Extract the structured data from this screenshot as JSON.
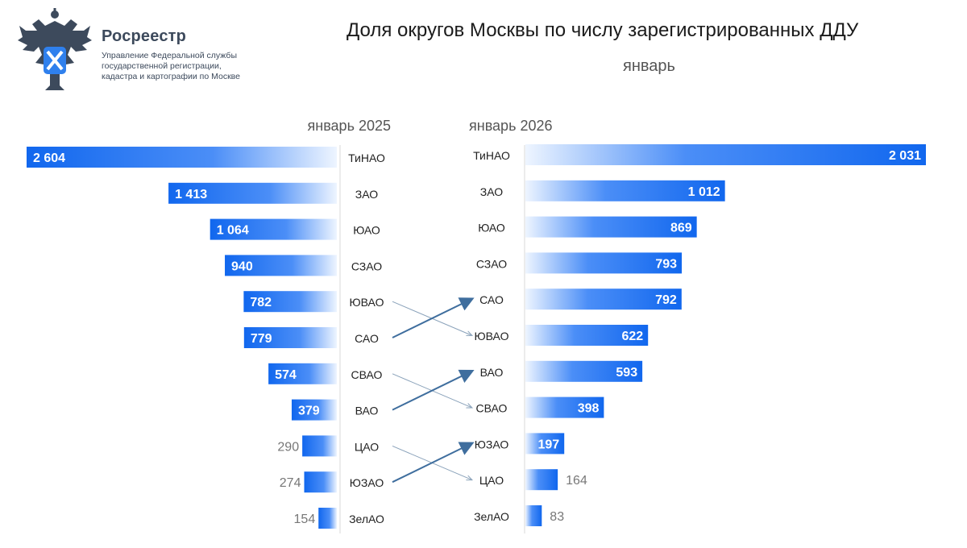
{
  "header": {
    "org_name": "Росреестр",
    "org_sub_lines": [
      "Управление Федеральной службы",
      "государственной регистрации,",
      "кадастра и картографии по Москве"
    ],
    "logo_icon": "double-headed-eagle-emblem-icon"
  },
  "colors": {
    "bar_dark": "#1167ee",
    "bar_light": "#eef5ff",
    "axis_line": "#d9d9d9",
    "arrow": "#3f6e9e"
  },
  "chart_data": {
    "type": "bar",
    "title": "Доля округов Москвы по числу зарегистрированных ДДУ",
    "subtitle": "январь",
    "left": {
      "name": "январь 2025",
      "categories": [
        "ТиНАО",
        "ЗАО",
        "ЮАО",
        "СЗАО",
        "ЮВАО",
        "САО",
        "СВАО",
        "ВАО",
        "ЦАО",
        "ЮЗАО",
        "ЗелАО"
      ],
      "values": [
        2604,
        1413,
        1064,
        940,
        782,
        779,
        574,
        379,
        290,
        274,
        154
      ],
      "labels": [
        "2 604",
        "1 413",
        "1 064",
        "940",
        "782",
        "779",
        "574",
        "379",
        "290",
        "274",
        "154"
      ]
    },
    "right": {
      "name": "январь 2026",
      "categories": [
        "ТиНАО",
        "ЗАО",
        "ЮАО",
        "СЗАО",
        "САО",
        "ЮВАО",
        "ВАО",
        "СВАО",
        "ЮЗАО",
        "ЦАО",
        "ЗелАО"
      ],
      "values": [
        2031,
        1012,
        869,
        793,
        792,
        622,
        593,
        398,
        197,
        164,
        83
      ],
      "labels": [
        "2 031",
        "1 012",
        "869",
        "793",
        "792",
        "622",
        "593",
        "398",
        "197",
        "164",
        "83"
      ]
    },
    "rank_changes": [
      {
        "district": "ЮВАО",
        "from_rank": 5,
        "to_rank": 6
      },
      {
        "district": "САО",
        "from_rank": 6,
        "to_rank": 5
      },
      {
        "district": "СВАО",
        "from_rank": 7,
        "to_rank": 8
      },
      {
        "district": "ВАО",
        "from_rank": 8,
        "to_rank": 7
      },
      {
        "district": "ЦАО",
        "from_rank": 9,
        "to_rank": 10
      },
      {
        "district": "ЮЗАО",
        "from_rank": 10,
        "to_rank": 9
      }
    ]
  }
}
